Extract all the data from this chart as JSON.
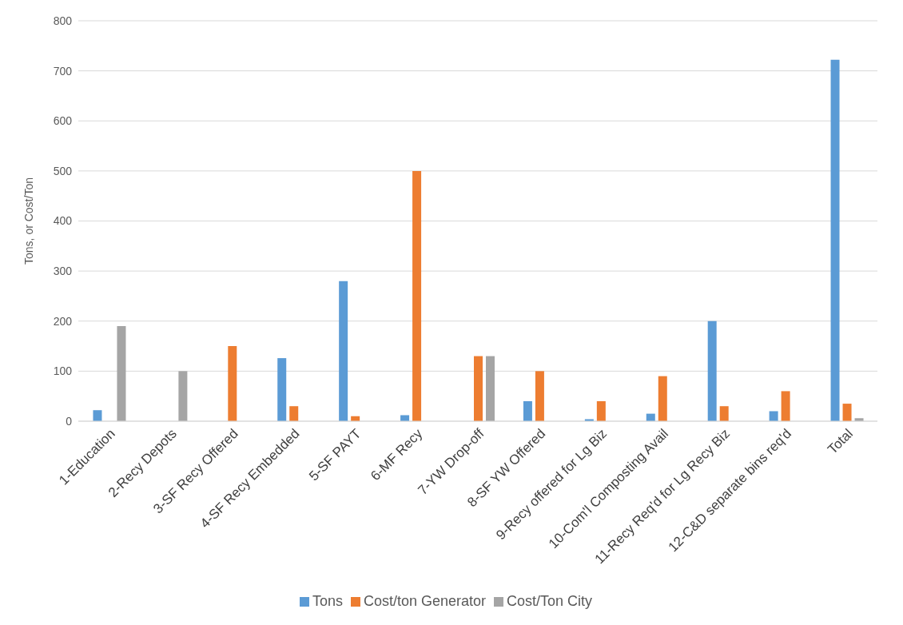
{
  "chart_data": {
    "type": "bar",
    "ylabel": "Tons, or Cost/Ton",
    "categories": [
      "1-Education",
      "2-Recy Depots",
      "3-SF Recy Offered",
      "4-SF Recy Embedded",
      "5-SF PAYT",
      "6-MF Recy",
      "7-YW Drop-off",
      "8-SF YW Offered",
      "9-Recy offered for Lg Biz",
      "10-Com'l Composting Avail",
      "11-Recy Req'd for Lg Recy Biz",
      "12-C&D separate bins req'd",
      "Total"
    ],
    "series": [
      {
        "name": "Tons",
        "color": "#5b9bd5",
        "values": [
          22,
          null,
          null,
          126,
          280,
          12,
          null,
          40,
          4,
          15,
          200,
          20,
          722
        ]
      },
      {
        "name": "Cost/ton Generator",
        "color": "#ed7d31",
        "values": [
          null,
          null,
          150,
          30,
          10,
          500,
          130,
          100,
          40,
          90,
          30,
          60,
          35
        ]
      },
      {
        "name": "Cost/Ton City",
        "color": "#a5a5a5",
        "values": [
          190,
          100,
          null,
          null,
          null,
          null,
          130,
          null,
          null,
          null,
          null,
          null,
          6
        ]
      }
    ],
    "ylim": [
      0,
      800
    ],
    "yticks": [
      0,
      100,
      200,
      300,
      400,
      500,
      600,
      700,
      800
    ],
    "grid": "y",
    "legend": "bottom"
  }
}
